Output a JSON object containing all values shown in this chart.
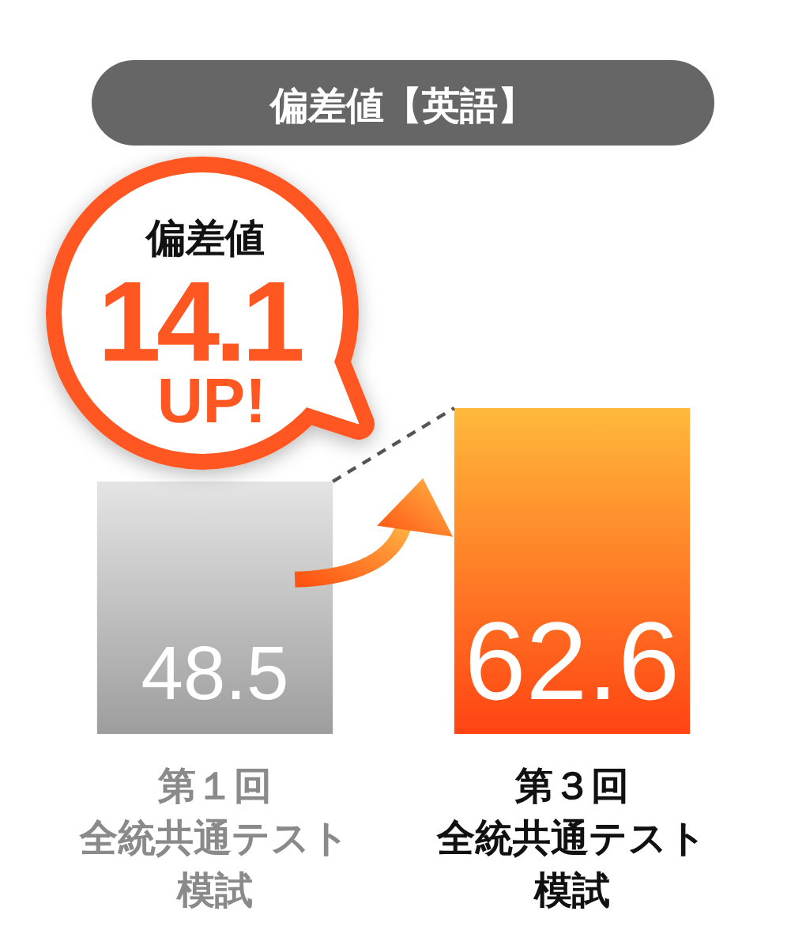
{
  "chart_data": {
    "type": "bar",
    "title": "偏差値【英語】",
    "categories": [
      "第１回全統共通テスト模試",
      "第３回全統共通テスト模試"
    ],
    "values": [
      48.5,
      62.6
    ],
    "colors": [
      "#c6c6c6",
      "#ff7f27"
    ],
    "data_labels": true,
    "tick_labels": "x",
    "annotations": [
      "偏差値",
      "14.1",
      "UP!"
    ]
  }
}
